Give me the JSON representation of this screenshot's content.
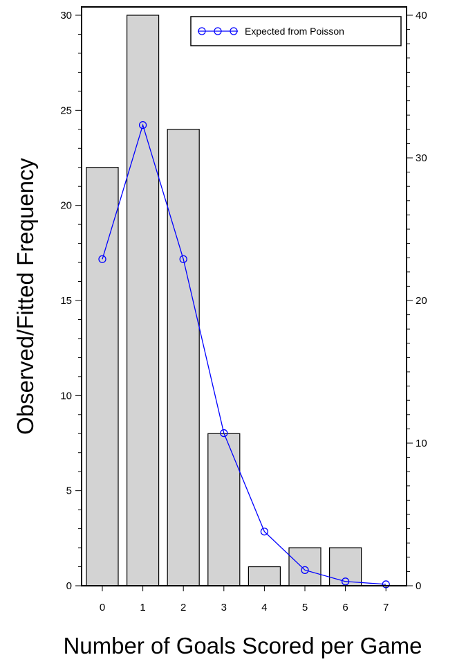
{
  "chart_data": {
    "type": "bar",
    "xlabel": "Number of Goals Scored per Game",
    "ylabel": "Observed/Fitted Frequency",
    "categories": [
      "0",
      "1",
      "2",
      "3",
      "4",
      "5",
      "6",
      "7"
    ],
    "series": [
      {
        "type": "bar",
        "values": [
          22,
          30,
          24,
          8,
          1,
          2,
          2,
          0
        ],
        "color": "#d3d3d3"
      },
      {
        "name": "Expected from Poisson",
        "type": "line",
        "axis": "right",
        "values": [
          22.9,
          32.3,
          22.9,
          10.7,
          3.8,
          1.1,
          0.3,
          0.1
        ],
        "color": "#0000ff"
      }
    ],
    "ylim_left": [
      0,
      30
    ],
    "yticks_left": [
      "0",
      "5",
      "10",
      "15",
      "20",
      "25",
      "30"
    ],
    "ylim_right": [
      0,
      40
    ],
    "yticks_right": [
      "0",
      "10",
      "20",
      "30",
      "40"
    ],
    "legend_position": "top-right",
    "grid": false
  }
}
